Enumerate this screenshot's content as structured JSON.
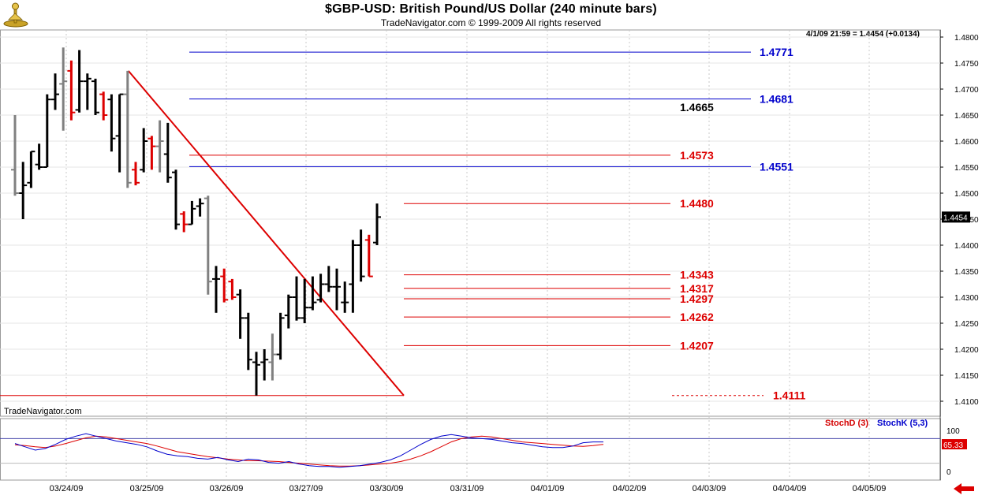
{
  "header": {
    "title": "$GBP-USD:  British Pound/US Dollar  (240 minute bars)",
    "subtitle": "TradeNavigator.com © 1999-2009 All rights reserved",
    "stamp": "4/1/09 21:59 = 1.4454 (+0.0134)",
    "brand": "TradeNavigator.com"
  },
  "colors": {
    "bar_up": "#000000",
    "bar_down": "#dd0000",
    "bar_neutral": "#808080",
    "fib_blue": "#0000cc",
    "fib_red": "#dd0000",
    "grid": "#c8c8c8",
    "stoch_d": "#dd0000",
    "stoch_k": "#0000cc"
  },
  "chart_data": [
    {
      "type": "ohlc",
      "ylim": [
        1.408,
        1.481
      ],
      "y_ticks": [
        "1.4800",
        "1.4750",
        "1.4700",
        "1.4650",
        "1.4600",
        "1.4550",
        "1.4500",
        "1.4450",
        "1.4400",
        "1.4350",
        "1.4300",
        "1.4250",
        "1.4200",
        "1.4150",
        "1.4100"
      ],
      "x_tick_labels": [
        "03/24/09",
        "03/25/09",
        "03/26/09",
        "03/27/09",
        "03/30/09",
        "03/31/09",
        "04/01/09",
        "04/02/09",
        "04/03/09",
        "04/04/09",
        "04/05/09"
      ],
      "last_price_label": "1.4454",
      "bars": [
        {
          "o": 1.4545,
          "h": 1.465,
          "l": 1.4495,
          "c": 1.45,
          "col": "gray"
        },
        {
          "o": 1.45,
          "h": 1.456,
          "l": 1.445,
          "c": 1.4515,
          "col": "black"
        },
        {
          "o": 1.452,
          "h": 1.458,
          "l": 1.451,
          "c": 1.458,
          "col": "black"
        },
        {
          "o": 1.4555,
          "h": 1.4595,
          "l": 1.4545,
          "c": 1.455,
          "col": "black"
        },
        {
          "o": 1.455,
          "h": 1.469,
          "l": 1.455,
          "c": 1.468,
          "col": "black"
        },
        {
          "o": 1.468,
          "h": 1.473,
          "l": 1.466,
          "c": 1.469,
          "col": "black"
        },
        {
          "o": 1.471,
          "h": 1.478,
          "l": 1.462,
          "c": 1.4715,
          "col": "gray"
        },
        {
          "o": 1.4735,
          "h": 1.4755,
          "l": 1.464,
          "c": 1.4655,
          "col": "red"
        },
        {
          "o": 1.466,
          "h": 1.4775,
          "l": 1.4655,
          "c": 1.4715,
          "col": "black"
        },
        {
          "o": 1.4715,
          "h": 1.473,
          "l": 1.466,
          "c": 1.472,
          "col": "black"
        },
        {
          "o": 1.4715,
          "h": 1.472,
          "l": 1.465,
          "c": 1.4655,
          "col": "black"
        },
        {
          "o": 1.469,
          "h": 1.4695,
          "l": 1.464,
          "c": 1.465,
          "col": "red"
        },
        {
          "o": 1.468,
          "h": 1.469,
          "l": 1.458,
          "c": 1.4605,
          "col": "black"
        },
        {
          "o": 1.461,
          "h": 1.469,
          "l": 1.454,
          "c": 1.469,
          "col": "black"
        },
        {
          "o": 1.469,
          "h": 1.4735,
          "l": 1.451,
          "c": 1.452,
          "col": "gray"
        },
        {
          "o": 1.4545,
          "h": 1.456,
          "l": 1.4515,
          "c": 1.452,
          "col": "red"
        },
        {
          "o": 1.4545,
          "h": 1.4625,
          "l": 1.454,
          "c": 1.46,
          "col": "black"
        },
        {
          "o": 1.4605,
          "h": 1.461,
          "l": 1.4545,
          "c": 1.459,
          "col": "red"
        },
        {
          "o": 1.459,
          "h": 1.464,
          "l": 1.454,
          "c": 1.46,
          "col": "gray"
        },
        {
          "o": 1.4575,
          "h": 1.4635,
          "l": 1.452,
          "c": 1.453,
          "col": "black"
        },
        {
          "o": 1.454,
          "h": 1.4545,
          "l": 1.443,
          "c": 1.444,
          "col": "black"
        },
        {
          "o": 1.446,
          "h": 1.4465,
          "l": 1.4425,
          "c": 1.444,
          "col": "red"
        },
        {
          "o": 1.444,
          "h": 1.4485,
          "l": 1.444,
          "c": 1.447,
          "col": "black"
        },
        {
          "o": 1.4475,
          "h": 1.449,
          "l": 1.4455,
          "c": 1.448,
          "col": "black"
        },
        {
          "o": 1.449,
          "h": 1.4495,
          "l": 1.4305,
          "c": 1.433,
          "col": "gray"
        },
        {
          "o": 1.4335,
          "h": 1.436,
          "l": 1.427,
          "c": 1.4335,
          "col": "black"
        },
        {
          "o": 1.434,
          "h": 1.4355,
          "l": 1.429,
          "c": 1.4295,
          "col": "red"
        },
        {
          "o": 1.433,
          "h": 1.4335,
          "l": 1.4295,
          "c": 1.43,
          "col": "red"
        },
        {
          "o": 1.4305,
          "h": 1.4315,
          "l": 1.422,
          "c": 1.426,
          "col": "black"
        },
        {
          "o": 1.426,
          "h": 1.427,
          "l": 1.416,
          "c": 1.418,
          "col": "black"
        },
        {
          "o": 1.4175,
          "h": 1.4195,
          "l": 1.4111,
          "c": 1.417,
          "col": "black"
        },
        {
          "o": 1.4175,
          "h": 1.42,
          "l": 1.414,
          "c": 1.418,
          "col": "black"
        },
        {
          "o": 1.4175,
          "h": 1.423,
          "l": 1.414,
          "c": 1.419,
          "col": "gray"
        },
        {
          "o": 1.419,
          "h": 1.427,
          "l": 1.418,
          "c": 1.426,
          "col": "black"
        },
        {
          "o": 1.4265,
          "h": 1.4305,
          "l": 1.424,
          "c": 1.43,
          "col": "black"
        },
        {
          "o": 1.43,
          "h": 1.434,
          "l": 1.4255,
          "c": 1.426,
          "col": "black"
        },
        {
          "o": 1.426,
          "h": 1.4335,
          "l": 1.425,
          "c": 1.428,
          "col": "black"
        },
        {
          "o": 1.428,
          "h": 1.434,
          "l": 1.4275,
          "c": 1.429,
          "col": "black"
        },
        {
          "o": 1.4295,
          "h": 1.4345,
          "l": 1.429,
          "c": 1.4325,
          "col": "black"
        },
        {
          "o": 1.4325,
          "h": 1.436,
          "l": 1.431,
          "c": 1.432,
          "col": "black"
        },
        {
          "o": 1.432,
          "h": 1.4355,
          "l": 1.4275,
          "c": 1.432,
          "col": "black"
        },
        {
          "o": 1.429,
          "h": 1.433,
          "l": 1.427,
          "c": 1.429,
          "col": "black"
        },
        {
          "o": 1.4325,
          "h": 1.441,
          "l": 1.427,
          "c": 1.44,
          "col": "black"
        },
        {
          "o": 1.44,
          "h": 1.443,
          "l": 1.433,
          "c": 1.434,
          "col": "black"
        },
        {
          "o": 1.441,
          "h": 1.442,
          "l": 1.434,
          "c": 1.434,
          "col": "red"
        },
        {
          "o": 1.4405,
          "h": 1.448,
          "l": 1.44,
          "c": 1.4454,
          "col": "black"
        }
      ],
      "fib_levels_blue": [
        {
          "value": 1.4771,
          "label": "1.4771"
        },
        {
          "value": 1.4681,
          "label": "1.4681"
        },
        {
          "value": 1.4551,
          "label": "1.4551"
        }
      ],
      "fib_levels_red": [
        {
          "value": 1.4573,
          "label": "1.4573"
        },
        {
          "value": 1.448,
          "label": "1.4480"
        },
        {
          "value": 1.4343,
          "label": "1.4343"
        },
        {
          "value": 1.4317,
          "label": "1.4317"
        },
        {
          "value": 1.4297,
          "label": "1.4297"
        },
        {
          "value": 1.4262,
          "label": "1.4262"
        },
        {
          "value": 1.4207,
          "label": "1.4207"
        }
      ],
      "extra_levels": [
        {
          "value": 1.4665,
          "label": "1.4665"
        },
        {
          "value": 1.4111,
          "label": "1.4111"
        }
      ],
      "swing_line": {
        "from": {
          "bar": 14,
          "price": 1.4735
        },
        "to": {
          "bar": 30,
          "price": 1.4111
        }
      }
    },
    {
      "type": "line",
      "ylim": [
        0,
        100
      ],
      "y_ticks": [
        "100",
        "0"
      ],
      "legend": [
        "StochD (3)",
        "StochK (5,3)"
      ],
      "last_value_label": "65.33",
      "series": [
        {
          "name": "StochD (3)",
          "values": [
            65,
            63,
            60,
            58,
            62,
            68,
            75,
            82,
            86,
            84,
            80,
            76,
            72,
            68,
            62,
            55,
            48,
            44,
            40,
            36,
            33,
            30,
            28,
            26,
            26,
            25,
            24,
            22,
            20,
            18,
            16,
            14,
            13,
            13,
            14,
            16,
            18,
            20,
            24,
            30,
            38,
            48,
            60,
            72,
            80,
            84,
            86,
            84,
            80,
            76,
            72,
            70,
            68,
            66,
            64,
            62,
            61,
            63,
            66
          ]
        },
        {
          "name": "StochK (5,3)",
          "values": [
            68,
            60,
            52,
            56,
            66,
            78,
            86,
            92,
            86,
            80,
            74,
            70,
            66,
            60,
            50,
            42,
            38,
            36,
            32,
            30,
            34,
            28,
            24,
            30,
            28,
            22,
            20,
            24,
            18,
            14,
            12,
            12,
            10,
            12,
            14,
            18,
            22,
            28,
            38,
            52,
            66,
            78,
            86,
            90,
            86,
            82,
            80,
            78,
            74,
            70,
            68,
            64,
            60,
            58,
            58,
            62,
            70,
            72,
            72
          ]
        }
      ]
    }
  ]
}
